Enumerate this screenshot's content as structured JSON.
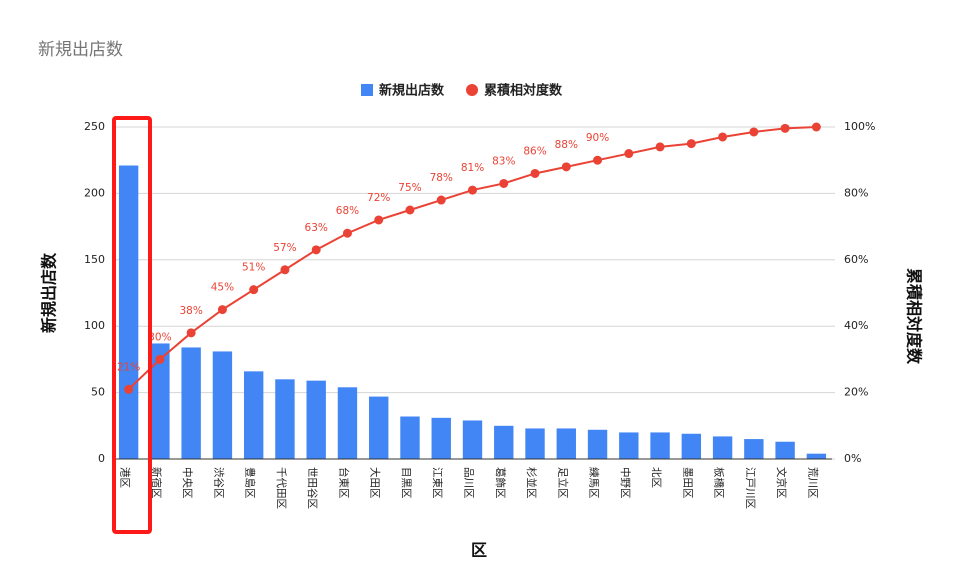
{
  "chart_data": {
    "type": "bar",
    "title": "新規出店数",
    "x_label": "区",
    "y_label": "新規出店数",
    "y2_label": "累積相対度数",
    "categories": [
      "港区",
      "新宿区",
      "中央区",
      "渋谷区",
      "豊島区",
      "千代田区",
      "世田谷区",
      "台東区",
      "大田区",
      "目黒区",
      "江東区",
      "品川区",
      "葛飾区",
      "杉並区",
      "足立区",
      "練馬区",
      "中野区",
      "北区",
      "墨田区",
      "板橋区",
      "江戸川区",
      "文京区",
      "荒川区"
    ],
    "series": [
      {
        "name": "新規出店数",
        "type": "bar",
        "color": "#4285f4",
        "values": [
          221,
          87,
          84,
          81,
          66,
          60,
          59,
          54,
          47,
          32,
          31,
          29,
          25,
          23,
          23,
          22,
          20,
          20,
          19,
          17,
          15,
          13,
          4
        ]
      },
      {
        "name": "累積相対度数",
        "type": "line",
        "axis": "y2",
        "color": "#ea4335",
        "values": [
          21,
          30,
          38,
          45,
          51,
          57,
          63,
          68,
          72,
          75,
          78,
          81,
          83,
          86,
          88,
          90,
          92,
          94,
          95,
          97,
          98.5,
          99.6,
          100
        ],
        "value_labels": [
          "21%",
          "30%",
          "38%",
          "45%",
          "51%",
          "57%",
          "63%",
          "68%",
          "72%",
          "75%",
          "78%",
          "81%",
          "83%",
          "86%",
          "88%",
          "90%",
          null,
          null,
          null,
          null,
          null,
          null,
          null
        ]
      }
    ],
    "ylim": [
      0,
      250
    ],
    "yticks": [
      0,
      50,
      100,
      150,
      200,
      250
    ],
    "y2lim": [
      0,
      100
    ],
    "y2ticks": [
      {
        "value": 0,
        "label": "0%"
      },
      {
        "value": 20,
        "label": "20%"
      },
      {
        "value": 40,
        "label": "40%"
      },
      {
        "value": 60,
        "label": "60%"
      },
      {
        "value": 80,
        "label": "80%"
      },
      {
        "value": 100,
        "label": "100%"
      }
    ],
    "grid": true,
    "legend": "top"
  }
}
